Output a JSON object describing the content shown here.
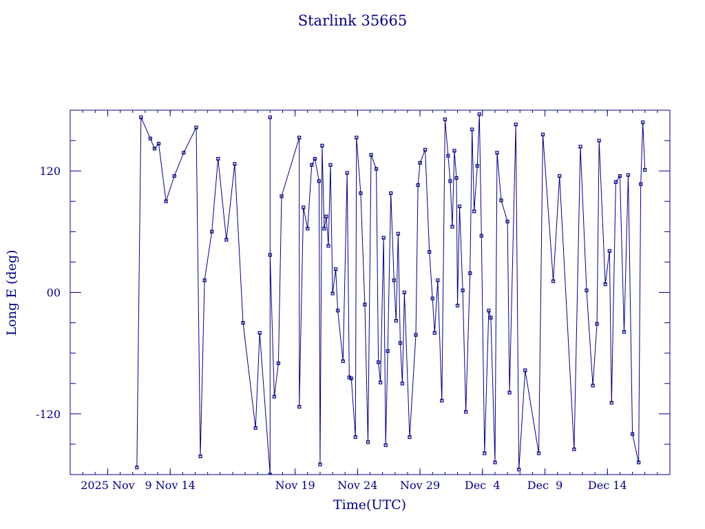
{
  "chart_data": {
    "type": "line",
    "title": "Starlink 35665",
    "xlabel": "Time(UTC)",
    "ylabel": "Long E (deg)",
    "xlim": [
      "2025-11-01",
      "2025-12-19"
    ],
    "ylim": [
      -180,
      180
    ],
    "y_ticks": [
      {
        "value": 120,
        "label": "120"
      },
      {
        "value": 0,
        "label": "00"
      },
      {
        "value": -120,
        "label": "-120"
      }
    ],
    "x_ticks": [
      {
        "value": "2025-11-04",
        "label": "2025 Nov"
      },
      {
        "value": "2025-11-09",
        "label": "9 Nov 14"
      },
      {
        "value": "2025-11-19",
        "label": "Nov 19"
      },
      {
        "value": "2025-11-24",
        "label": "Nov 24"
      },
      {
        "value": "2025-11-29",
        "label": "Nov 29"
      },
      {
        "value": "2025-12-04",
        "label": "Dec  4"
      },
      {
        "value": "2025-12-09",
        "label": "Dec  9"
      },
      {
        "value": "2025-12-14",
        "label": "Dec 14"
      }
    ],
    "grid": false,
    "series": [
      {
        "points": [
          [
            "2025-11-06 08:00",
            -173
          ],
          [
            "2025-11-06 16:00",
            173
          ],
          [
            "2025-11-07 10:00",
            152
          ],
          [
            "2025-11-07 18:00",
            142
          ],
          [
            "2025-11-08 02:00",
            147
          ],
          [
            "2025-11-08 16:00",
            90
          ],
          [
            "2025-11-09 08:00",
            115
          ],
          [
            "2025-11-10 02:00",
            138
          ],
          [
            "2025-11-11 02:00",
            163
          ],
          [
            "2025-11-11 10:00",
            -162
          ],
          [
            "2025-11-11 18:00",
            12
          ],
          [
            "2025-11-12 08:00",
            60
          ],
          [
            "2025-11-12 20:00",
            132
          ],
          [
            "2025-11-13 12:00",
            52
          ],
          [
            "2025-11-14 04:00",
            127
          ],
          [
            "2025-11-14 20:00",
            -30
          ],
          [
            "2025-11-15 20:00",
            -134
          ],
          [
            "2025-11-16 04:00",
            -40
          ],
          [
            "2025-11-17 00:00",
            -180
          ],
          [
            "2025-11-17 00:00",
            173
          ],
          [
            "2025-11-17 00:00",
            37
          ],
          [
            "2025-11-17 08:00",
            -103
          ],
          [
            "2025-11-17 16:00",
            -70
          ],
          [
            "2025-11-17 22:00",
            95
          ],
          [
            "2025-11-19 08:00",
            153
          ],
          [
            "2025-11-19 08:00",
            -113
          ],
          [
            "2025-11-19 16:00",
            84
          ],
          [
            "2025-11-20 00:00",
            63
          ],
          [
            "2025-11-20 08:00",
            126
          ],
          [
            "2025-11-20 14:00",
            132
          ],
          [
            "2025-11-20 22:00",
            110
          ],
          [
            "2025-11-21 00:00",
            -170
          ],
          [
            "2025-11-21 04:00",
            145
          ],
          [
            "2025-11-21 08:00",
            63
          ],
          [
            "2025-11-21 12:00",
            75
          ],
          [
            "2025-11-21 16:00",
            46
          ],
          [
            "2025-11-21 20:00",
            126
          ],
          [
            "2025-11-22 00:00",
            -1
          ],
          [
            "2025-11-22 06:00",
            23
          ],
          [
            "2025-11-22 10:00",
            -18
          ],
          [
            "2025-11-22 20:00",
            -68
          ],
          [
            "2025-11-23 04:00",
            118
          ],
          [
            "2025-11-23 08:00",
            -84
          ],
          [
            "2025-11-23 12:00",
            -85
          ],
          [
            "2025-11-23 20:00",
            -143
          ],
          [
            "2025-11-23 22:00",
            153
          ],
          [
            "2025-11-24 06:00",
            98
          ],
          [
            "2025-11-24 14:00",
            -12
          ],
          [
            "2025-11-24 20:00",
            -148
          ],
          [
            "2025-11-25 02:00",
            136
          ],
          [
            "2025-11-25 12:00",
            122
          ],
          [
            "2025-11-25 16:00",
            -69
          ],
          [
            "2025-11-25 20:00",
            -89
          ],
          [
            "2025-11-26 02:00",
            54
          ],
          [
            "2025-11-26 06:00",
            -151
          ],
          [
            "2025-11-26 10:00",
            -58
          ],
          [
            "2025-11-26 16:00",
            98
          ],
          [
            "2025-11-26 22:00",
            12
          ],
          [
            "2025-11-27 02:00",
            -28
          ],
          [
            "2025-11-27 06:00",
            58
          ],
          [
            "2025-11-27 10:00",
            -50
          ],
          [
            "2025-11-27 14:00",
            -90
          ],
          [
            "2025-11-27 18:00",
            0
          ],
          [
            "2025-11-28 04:00",
            -143
          ],
          [
            "2025-11-28 16:00",
            -42
          ],
          [
            "2025-11-28 20:00",
            106
          ],
          [
            "2025-11-29 00:00",
            128
          ],
          [
            "2025-11-29 10:00",
            141
          ],
          [
            "2025-11-29 18:00",
            40
          ],
          [
            "2025-11-30 00:00",
            -6
          ],
          [
            "2025-11-30 04:00",
            -40
          ],
          [
            "2025-11-30 10:00",
            12
          ],
          [
            "2025-11-30 18:00",
            -107
          ],
          [
            "2025-12-01 00:00",
            171
          ],
          [
            "2025-12-01 06:00",
            135
          ],
          [
            "2025-12-01 10:00",
            110
          ],
          [
            "2025-12-01 14:00",
            65
          ],
          [
            "2025-12-01 18:00",
            140
          ],
          [
            "2025-12-01 22:00",
            113
          ],
          [
            "2025-12-02 00:00",
            -13
          ],
          [
            "2025-12-02 04:00",
            85
          ],
          [
            "2025-12-02 10:00",
            2
          ],
          [
            "2025-12-02 16:00",
            -118
          ],
          [
            "2025-12-03 00:00",
            19
          ],
          [
            "2025-12-03 04:00",
            161
          ],
          [
            "2025-12-03 08:00",
            80
          ],
          [
            "2025-12-03 14:00",
            125
          ],
          [
            "2025-12-03 18:00",
            176
          ],
          [
            "2025-12-03 22:00",
            56
          ],
          [
            "2025-12-04 04:00",
            -159
          ],
          [
            "2025-12-04 12:00",
            -18
          ],
          [
            "2025-12-04 16:00",
            -25
          ],
          [
            "2025-12-05 00:00",
            -168
          ],
          [
            "2025-12-05 04:00",
            138
          ],
          [
            "2025-12-05 12:00",
            91
          ],
          [
            "2025-12-06 00:00",
            70
          ],
          [
            "2025-12-06 04:00",
            -99
          ],
          [
            "2025-12-06 16:00",
            166
          ],
          [
            "2025-12-06 22:00",
            -175
          ],
          [
            "2025-12-07 10:00",
            -77
          ],
          [
            "2025-12-08 12:00",
            -159
          ],
          [
            "2025-12-08 20:00",
            156
          ],
          [
            "2025-12-09 16:00",
            11
          ],
          [
            "2025-12-10 04:00",
            115
          ],
          [
            "2025-12-11 08:00",
            -155
          ],
          [
            "2025-12-11 20:00",
            144
          ],
          [
            "2025-12-12 08:00",
            2
          ],
          [
            "2025-12-12 20:00",
            -92
          ],
          [
            "2025-12-13 04:00",
            -31
          ],
          [
            "2025-12-13 08:00",
            150
          ],
          [
            "2025-12-13 20:00",
            8
          ],
          [
            "2025-12-14 04:00",
            41
          ],
          [
            "2025-12-14 08:00",
            -109
          ],
          [
            "2025-12-14 16:00",
            109
          ],
          [
            "2025-12-15 00:00",
            115
          ],
          [
            "2025-12-15 08:00",
            -39
          ],
          [
            "2025-12-15 16:00",
            116
          ],
          [
            "2025-12-16 00:00",
            -140
          ],
          [
            "2025-12-16 12:00",
            -168
          ],
          [
            "2025-12-16 16:00",
            107
          ],
          [
            "2025-12-16 20:00",
            168
          ],
          [
            "2025-12-17 00:00",
            121
          ]
        ]
      }
    ]
  }
}
